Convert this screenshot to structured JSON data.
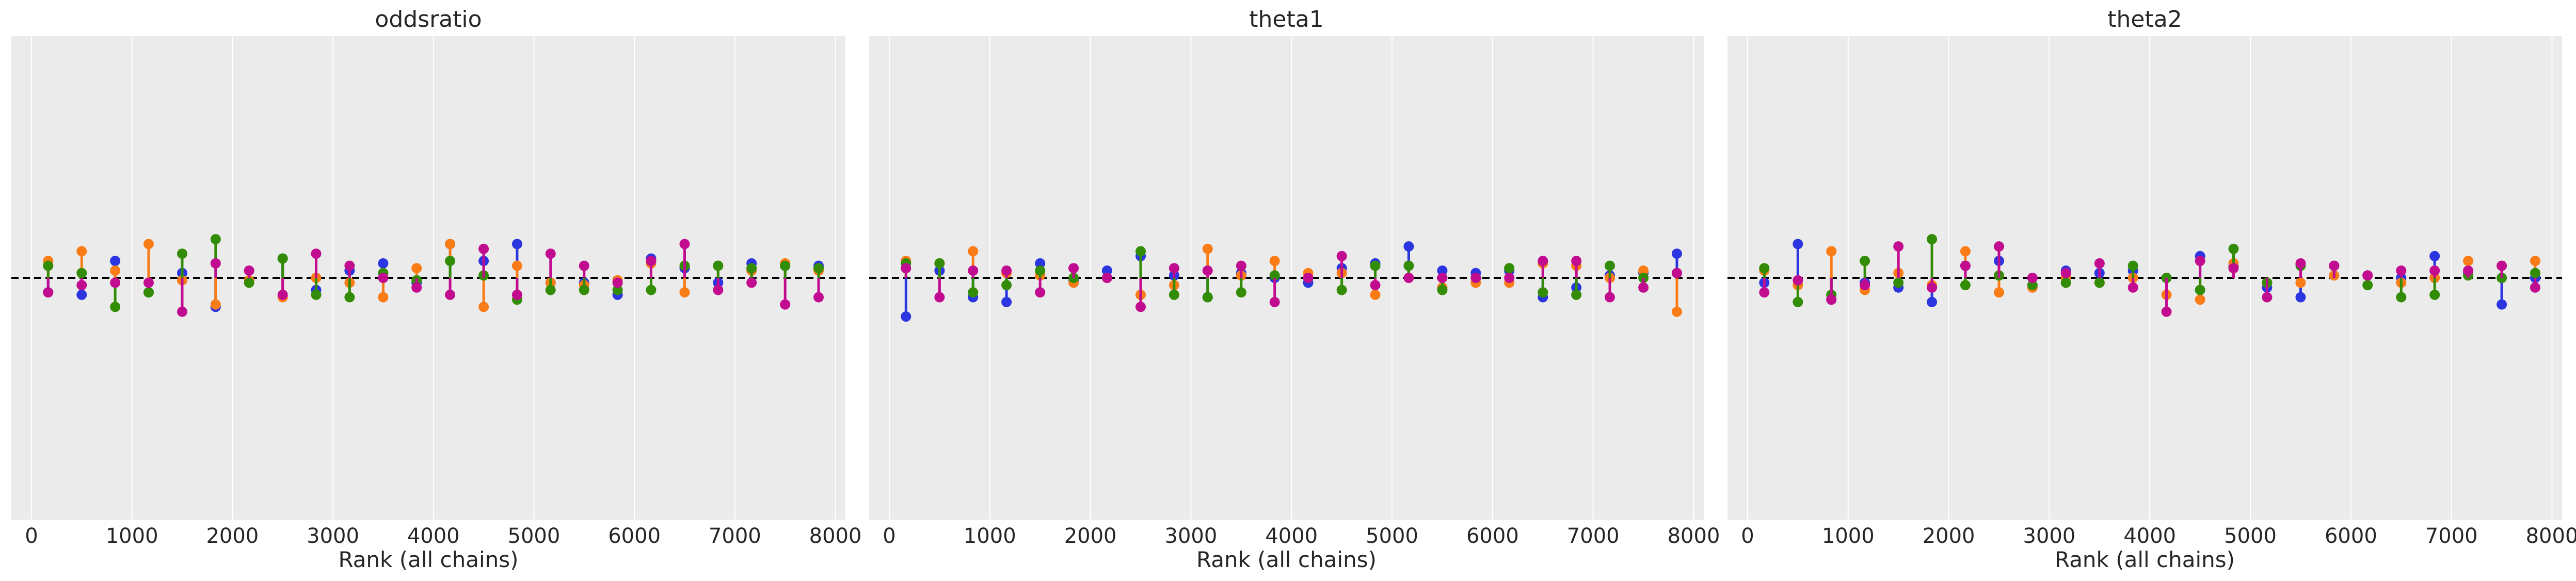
{
  "colors": {
    "background": "#ebebeb",
    "grid": "#ffffff",
    "reference_line": "#000000",
    "series": [
      "#2b36e0",
      "#fa7c17",
      "#328c06",
      "#c10c90"
    ]
  },
  "chart_data": [
    {
      "type": "rank_vlines",
      "title": "oddsratio",
      "xlabel": "Rank (all chains)",
      "ylabel": "",
      "xlim": [
        -200,
        8100
      ],
      "ylim": [
        -1,
        1
      ],
      "xticks": [
        0,
        1000,
        2000,
        3000,
        4000,
        5000,
        6000,
        7000,
        8000
      ],
      "xtick_labels": [
        "0",
        "1000",
        "2000",
        "3000",
        "4000",
        "5000",
        "6000",
        "7000",
        "8000"
      ],
      "reference_line": 0,
      "grid": "vertical",
      "x": [
        166,
        500,
        833,
        1166,
        1500,
        1833,
        2166,
        2500,
        2833,
        3166,
        3500,
        3833,
        4166,
        4500,
        4833,
        5166,
        5500,
        5833,
        6166,
        6500,
        6833,
        7166,
        7500,
        7833
      ],
      "series": [
        {
          "values": [
            -0.06,
            -0.07,
            0.07,
            -0.06,
            0.02,
            -0.12,
            0.03,
            0.08,
            -0.05,
            0.03,
            0.06,
            -0.02,
            0.14,
            0.07,
            0.14,
            -0.02,
            -0.02,
            -0.07,
            0.08,
            0.04,
            -0.02,
            0.06,
            0.05,
            0.05
          ]
        },
        {
          "values": [
            0.07,
            0.11,
            0.03,
            0.14,
            -0.01,
            -0.11,
            -0.01,
            -0.08,
            0.0,
            -0.02,
            -0.08,
            0.04,
            0.14,
            -0.12,
            0.05,
            -0.02,
            -0.03,
            -0.01,
            0.06,
            -0.06,
            0.05,
            0.03,
            0.06,
            0.03
          ]
        },
        {
          "values": [
            0.05,
            0.02,
            -0.12,
            -0.06,
            0.1,
            0.16,
            -0.02,
            0.08,
            -0.07,
            -0.08,
            0.02,
            -0.01,
            0.07,
            0.01,
            -0.09,
            -0.05,
            -0.05,
            -0.05,
            -0.05,
            0.05,
            0.05,
            0.04,
            0.05,
            0.04
          ]
        },
        {
          "values": [
            -0.06,
            -0.03,
            -0.02,
            -0.02,
            -0.14,
            0.06,
            0.03,
            -0.07,
            0.1,
            0.05,
            0.0,
            -0.04,
            -0.07,
            0.12,
            -0.07,
            0.1,
            0.05,
            -0.02,
            0.07,
            0.14,
            -0.05,
            -0.02,
            -0.11,
            -0.08
          ]
        }
      ]
    },
    {
      "type": "rank_vlines",
      "title": "theta1",
      "xlabel": "Rank (all chains)",
      "ylabel": "",
      "xlim": [
        -200,
        8100
      ],
      "ylim": [
        -1,
        1
      ],
      "xticks": [
        0,
        1000,
        2000,
        3000,
        4000,
        5000,
        6000,
        7000,
        8000
      ],
      "xtick_labels": [
        "0",
        "1000",
        "2000",
        "3000",
        "4000",
        "5000",
        "6000",
        "7000",
        "8000"
      ],
      "reference_line": 0,
      "grid": "vertical",
      "x": [
        166,
        500,
        833,
        1166,
        1500,
        1833,
        2166,
        2500,
        2833,
        3166,
        3500,
        3833,
        4166,
        4500,
        4833,
        5166,
        5500,
        5833,
        6166,
        6500,
        6833,
        7166,
        7500,
        7833
      ],
      "series": [
        {
          "values": [
            -0.16,
            0.03,
            -0.08,
            -0.1,
            0.06,
            -0.01,
            0.03,
            0.09,
            0.01,
            -0.08,
            0.02,
            0.0,
            -0.02,
            0.04,
            0.06,
            0.13,
            0.03,
            0.02,
            0.03,
            -0.08,
            -0.04,
            0.01,
            0.02,
            0.1
          ]
        },
        {
          "values": [
            0.07,
            0.06,
            0.11,
            0.02,
            0.01,
            -0.02,
            0.0,
            -0.07,
            -0.03,
            0.12,
            0.01,
            0.07,
            0.02,
            0.02,
            -0.07,
            0.05,
            -0.04,
            -0.02,
            -0.02,
            0.06,
            0.05,
            0.0,
            0.03,
            -0.14
          ]
        },
        {
          "values": [
            0.06,
            0.06,
            -0.06,
            -0.03,
            0.03,
            0.0,
            0.0,
            0.11,
            -0.07,
            -0.08,
            -0.06,
            0.01,
            0.0,
            -0.05,
            0.05,
            0.05,
            -0.05,
            0.0,
            0.04,
            -0.06,
            -0.07,
            0.05,
            0.0,
            0.02
          ]
        },
        {
          "values": [
            0.04,
            -0.08,
            0.03,
            0.03,
            -0.06,
            0.04,
            0.0,
            -0.12,
            0.04,
            0.03,
            0.05,
            -0.1,
            0.0,
            0.09,
            -0.03,
            0.0,
            0.0,
            0.0,
            0.0,
            0.07,
            0.07,
            -0.08,
            -0.04,
            0.02
          ]
        }
      ]
    },
    {
      "type": "rank_vlines",
      "title": "theta2",
      "xlabel": "Rank (all chains)",
      "ylabel": "",
      "xlim": [
        -200,
        8100
      ],
      "ylim": [
        -1,
        1
      ],
      "xticks": [
        0,
        1000,
        2000,
        3000,
        4000,
        5000,
        6000,
        7000,
        8000
      ],
      "xtick_labels": [
        "0",
        "1000",
        "2000",
        "3000",
        "4000",
        "5000",
        "6000",
        "7000",
        "8000"
      ],
      "reference_line": 0,
      "grid": "vertical",
      "x": [
        166,
        500,
        833,
        1166,
        1500,
        1833,
        2166,
        2500,
        2833,
        3166,
        3500,
        3833,
        4166,
        4500,
        4833,
        5166,
        5500,
        5833,
        6166,
        6500,
        6833,
        7166,
        7500,
        7833
      ],
      "series": [
        {
          "values": [
            -0.02,
            0.14,
            -0.09,
            -0.02,
            -0.04,
            -0.1,
            0.05,
            0.07,
            0.0,
            0.03,
            0.02,
            0.03,
            0.0,
            0.09,
            0.05,
            -0.04,
            -0.08,
            0.05,
            0.01,
            0.0,
            0.09,
            0.02,
            -0.11,
            0.0
          ]
        },
        {
          "values": [
            0.03,
            -0.03,
            0.11,
            -0.05,
            0.02,
            -0.03,
            0.11,
            -0.06,
            -0.04,
            0.0,
            -0.02,
            0.0,
            -0.07,
            -0.09,
            0.06,
            -0.02,
            -0.02,
            0.01,
            0.01,
            -0.02,
            0.0,
            0.07,
            0.05,
            0.07
          ]
        },
        {
          "values": [
            0.04,
            -0.1,
            -0.07,
            0.07,
            -0.02,
            0.16,
            -0.03,
            0.01,
            -0.03,
            -0.02,
            -0.02,
            0.05,
            0.0,
            -0.05,
            0.12,
            -0.02,
            0.05,
            0.05,
            -0.03,
            -0.08,
            -0.07,
            0.01,
            0.0,
            0.02
          ]
        },
        {
          "values": [
            -0.06,
            -0.01,
            -0.09,
            -0.03,
            0.13,
            -0.04,
            0.05,
            0.13,
            0.0,
            0.02,
            0.06,
            -0.04,
            -0.14,
            0.07,
            0.04,
            -0.08,
            0.06,
            0.05,
            0.01,
            0.03,
            0.03,
            0.03,
            0.05,
            -0.04
          ]
        }
      ]
    }
  ]
}
